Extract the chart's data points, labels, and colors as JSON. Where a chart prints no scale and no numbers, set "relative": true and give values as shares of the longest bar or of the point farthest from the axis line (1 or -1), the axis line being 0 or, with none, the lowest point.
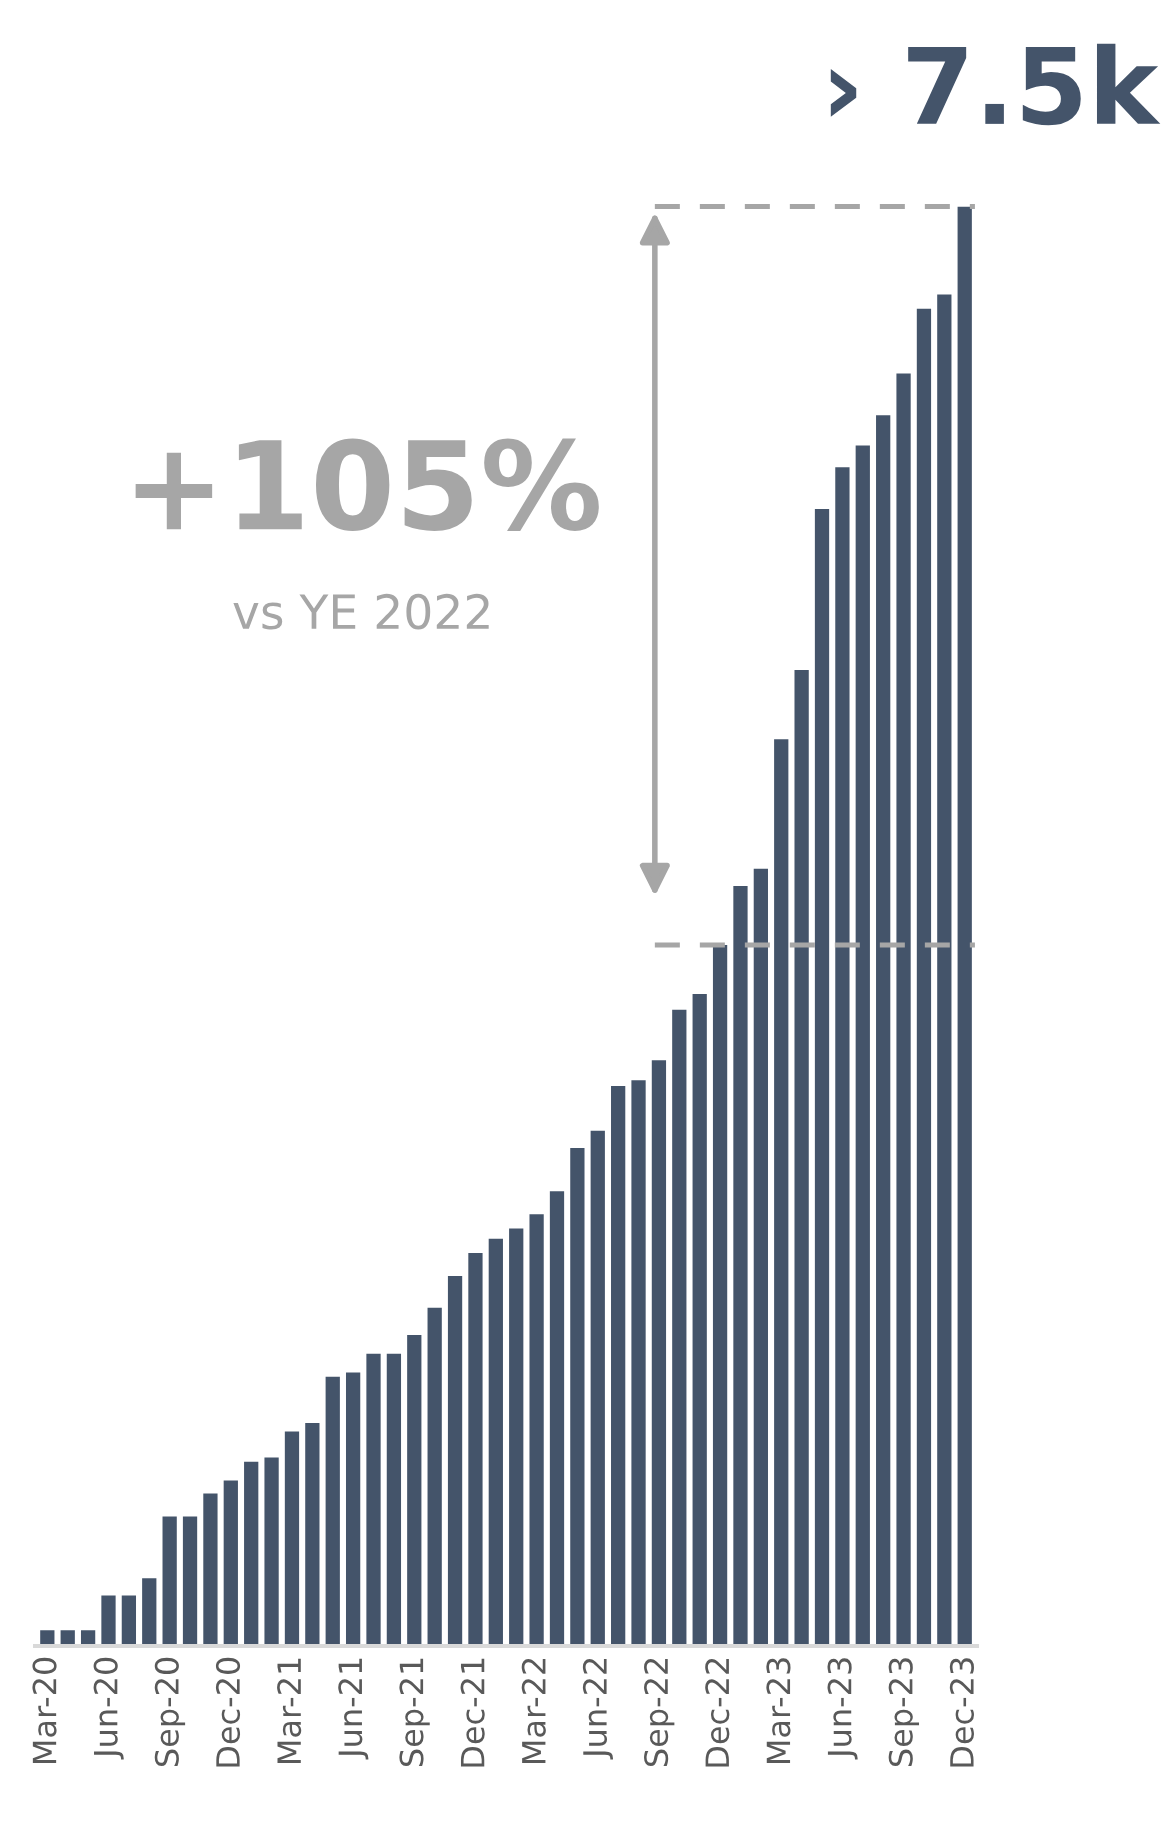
{
  "chart_data": {
    "type": "bar",
    "relative": true,
    "title": "› 7.5k",
    "color": "#44546a",
    "categories": [
      "Mar-20",
      null,
      null,
      "Jun-20",
      null,
      null,
      "Sep-20",
      null,
      null,
      "Dec-20",
      null,
      null,
      "Mar-21",
      null,
      null,
      "Jun-21",
      null,
      null,
      "Sep-21",
      null,
      null,
      "Dec-21",
      null,
      null,
      "Mar-22",
      null,
      null,
      "Jun-22",
      null,
      null,
      "Sep-22",
      null,
      null,
      "Dec-22",
      null,
      null,
      "Mar-23",
      null,
      null,
      "Jun-23",
      null,
      null,
      "Sep-23",
      null,
      null,
      "Dec-23"
    ],
    "values": [
      0.011,
      0.011,
      0.011,
      0.035,
      0.035,
      0.047,
      0.09,
      0.09,
      0.106,
      0.115,
      0.128,
      0.131,
      0.149,
      0.155,
      0.187,
      0.19,
      0.203,
      0.203,
      0.216,
      0.235,
      0.257,
      0.273,
      0.283,
      0.29,
      0.3,
      0.316,
      0.346,
      0.358,
      0.389,
      0.393,
      0.407,
      0.442,
      0.453,
      0.487,
      0.528,
      0.54,
      0.63,
      0.678,
      0.79,
      0.819,
      0.834,
      0.855,
      0.884,
      0.929,
      0.939,
      1
    ],
    "ref_lines": [
      {
        "axis": "y",
        "value": 0.487,
        "color": "#a6a6a6",
        "line_style": "dashed"
      },
      {
        "axis": "y",
        "value": 1,
        "color": "#a6a6a6",
        "line_style": "dashed"
      }
    ],
    "annotations": [
      "+105%",
      "vs YE 2022"
    ],
    "grid": false,
    "legend": false
  }
}
